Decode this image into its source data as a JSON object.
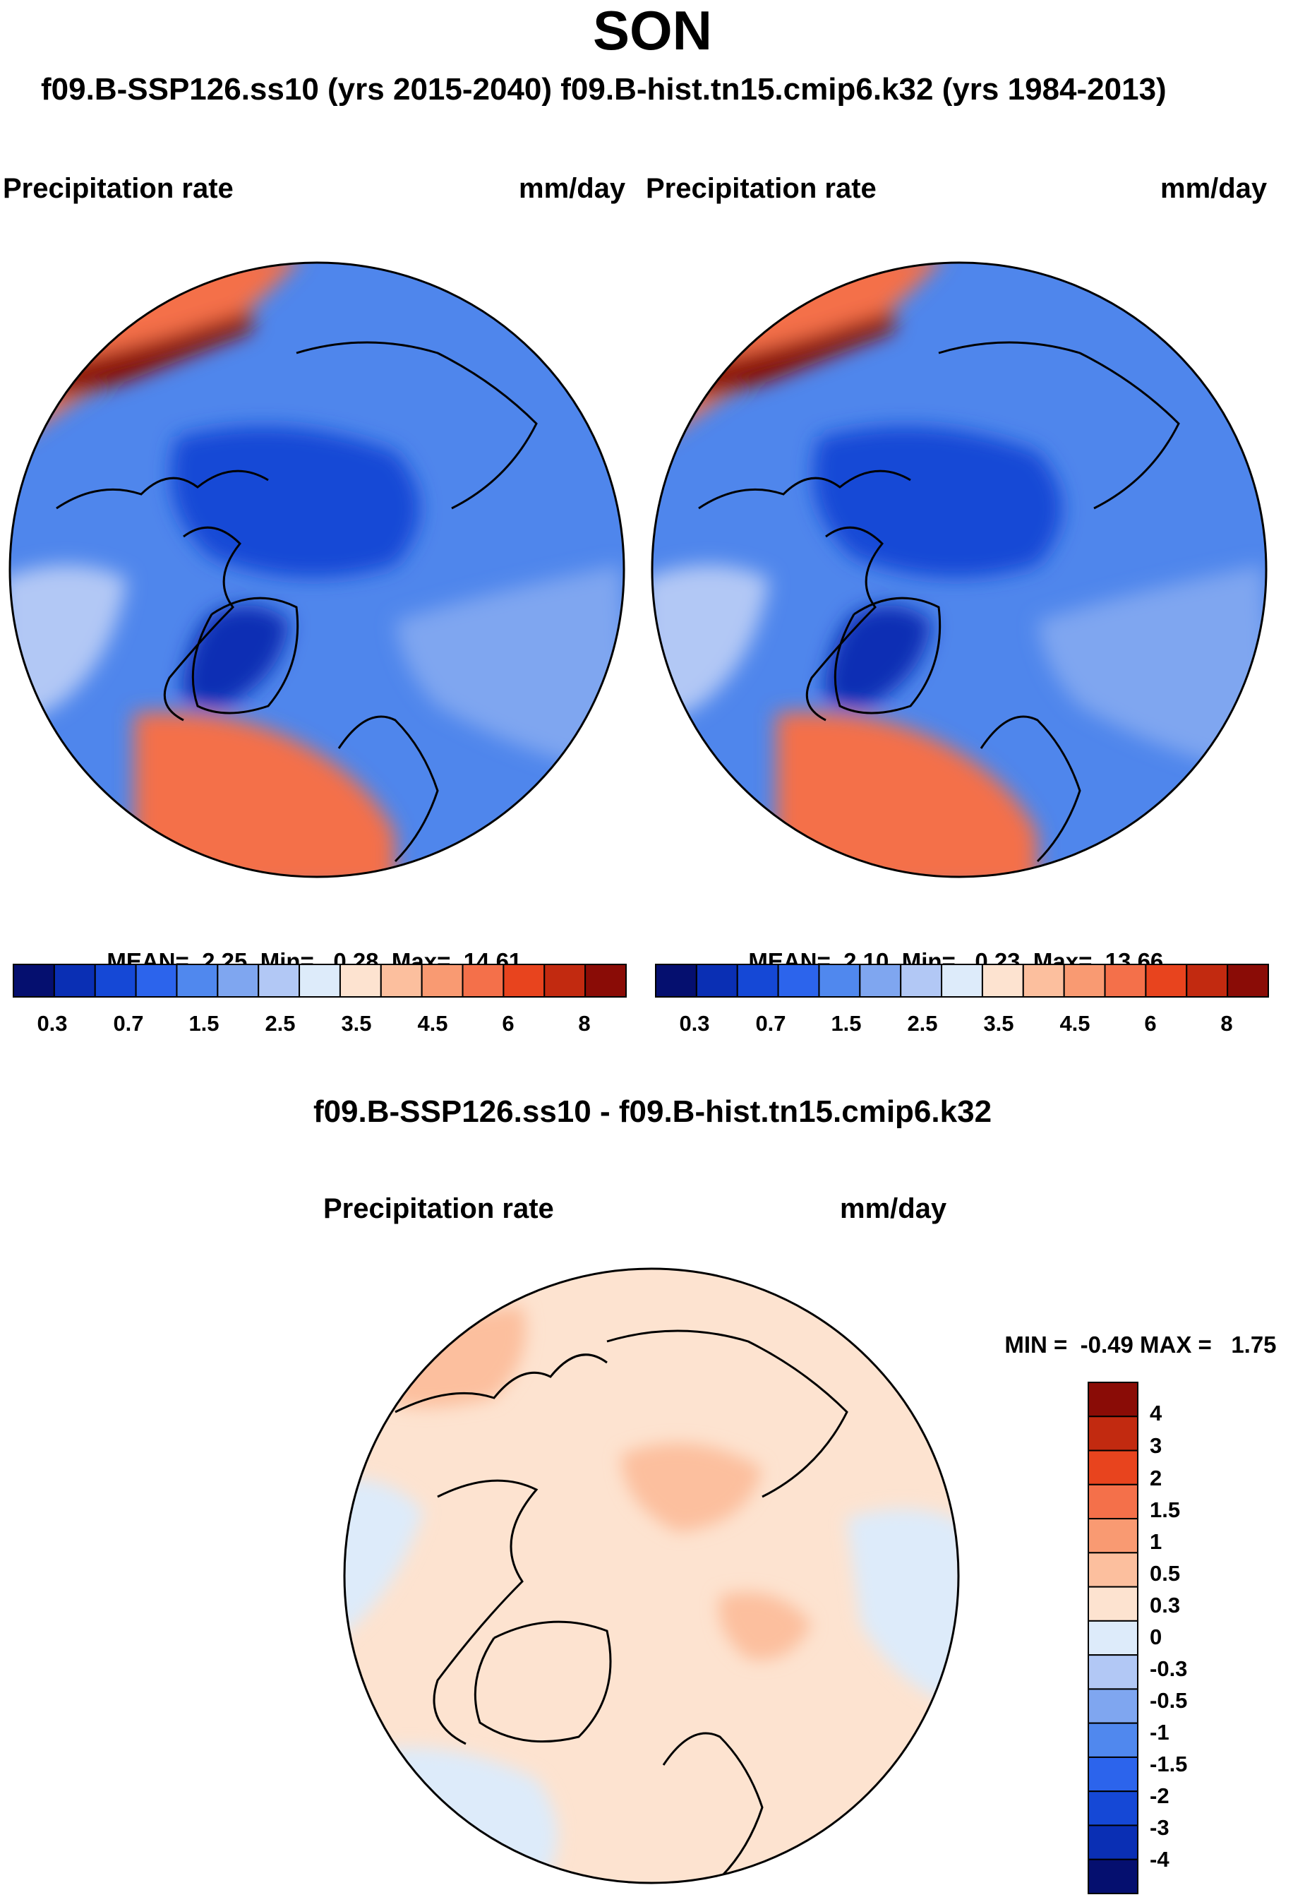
{
  "header": {
    "season": "SON",
    "comparison": "f09.B-SSP126.ss10 (yrs 2015-2040)  f09.B-hist.tn15.cmip6.k32 (yrs 1984-2013)",
    "difference_title": "f09.B-SSP126.ss10 - f09.B-hist.tn15.cmip6.k32"
  },
  "colors": {
    "seq": [
      "#050f6f",
      "#0a2fb4",
      "#1548d6",
      "#2c64ec",
      "#5088ee",
      "#7fa6f0",
      "#b2c8f5",
      "#ddebfa",
      "#fde3d0",
      "#fcbf9e",
      "#f99a72",
      "#f4704a",
      "#e8441e",
      "#c22a10",
      "#8a0c06"
    ],
    "diff": [
      "#050f6f",
      "#0a2fb4",
      "#1548d6",
      "#2c64ec",
      "#5088ee",
      "#7fa6f0",
      "#b2c8f5",
      "#ddebfa",
      "#fde3d0",
      "#fcbf9e",
      "#f99a72",
      "#f4704a",
      "#e8441e",
      "#c22a10",
      "#8a0c06"
    ]
  },
  "chart_data": [
    {
      "type": "heatmap",
      "panel": "test",
      "projection": "north polar stereographic",
      "title_left": "Precipitation rate",
      "title_right": "mm/day",
      "mean_label": "MEAN=",
      "mean": "2.25",
      "min_label": "Min=",
      "min": "0.28",
      "max_label": "Max=",
      "max": "14.61",
      "colorbar_ticks": [
        "0.3",
        "0.7",
        "1.5",
        "2.5",
        "3.5",
        "4.5",
        "6",
        "8"
      ],
      "contour_levels": [
        0.2,
        0.3,
        0.5,
        0.7,
        1,
        1.5,
        2,
        2.5,
        3,
        3.5,
        4,
        4.5,
        5,
        6,
        7,
        8
      ]
    },
    {
      "type": "heatmap",
      "panel": "control",
      "projection": "north polar stereographic",
      "title_left": "Precipitation rate",
      "title_right": "mm/day",
      "mean_label": "MEAN=",
      "mean": "2.10",
      "min_label": "Min=",
      "min": "0.23",
      "max_label": "Max=",
      "max": "13.66",
      "colorbar_ticks": [
        "0.3",
        "0.7",
        "1.5",
        "2.5",
        "3.5",
        "4.5",
        "6",
        "8"
      ],
      "contour_levels": [
        0.2,
        0.3,
        0.5,
        0.7,
        1,
        1.5,
        2,
        2.5,
        3,
        3.5,
        4,
        4.5,
        5,
        6,
        7,
        8
      ]
    },
    {
      "type": "heatmap",
      "panel": "difference",
      "projection": "north polar stereographic",
      "title_left": "Precipitation rate",
      "title_right": "mm/day",
      "min_label": "MIN =",
      "min": "-0.49",
      "max_label": "MAX =",
      "max": "1.75",
      "colorbar_ticks": [
        "4",
        "3",
        "2",
        "1.5",
        "1",
        "0.5",
        "0.3",
        "0",
        "-0.3",
        "-0.5",
        "-1",
        "-1.5",
        "-2",
        "-3",
        "-4"
      ]
    }
  ]
}
